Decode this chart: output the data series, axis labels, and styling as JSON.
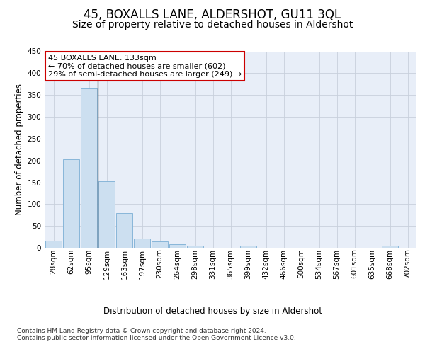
{
  "title": "45, BOXALLS LANE, ALDERSHOT, GU11 3QL",
  "subtitle": "Size of property relative to detached houses in Aldershot",
  "xlabel": "Distribution of detached houses by size in Aldershot",
  "ylabel": "Number of detached properties",
  "categories": [
    "28sqm",
    "62sqm",
    "95sqm",
    "129sqm",
    "163sqm",
    "197sqm",
    "230sqm",
    "264sqm",
    "298sqm",
    "331sqm",
    "365sqm",
    "399sqm",
    "432sqm",
    "466sqm",
    "500sqm",
    "534sqm",
    "567sqm",
    "601sqm",
    "635sqm",
    "668sqm",
    "702sqm"
  ],
  "values": [
    17,
    202,
    367,
    153,
    79,
    21,
    14,
    8,
    5,
    0,
    0,
    5,
    0,
    0,
    0,
    0,
    0,
    0,
    0,
    5,
    0
  ],
  "bar_color": "#ccdff0",
  "bar_edge_color": "#7bafd4",
  "highlight_bar_index": 3,
  "highlight_line_color": "#555555",
  "annotation_text": "45 BOXALLS LANE: 133sqm\n← 70% of detached houses are smaller (602)\n29% of semi-detached houses are larger (249) →",
  "annotation_box_color": "#ffffff",
  "annotation_box_edge_color": "#cc0000",
  "ylim": [
    0,
    450
  ],
  "yticks": [
    0,
    50,
    100,
    150,
    200,
    250,
    300,
    350,
    400,
    450
  ],
  "background_color": "#e8eef8",
  "footer_text": "Contains HM Land Registry data © Crown copyright and database right 2024.\nContains public sector information licensed under the Open Government Licence v3.0.",
  "title_fontsize": 12,
  "subtitle_fontsize": 10,
  "axis_label_fontsize": 8.5,
  "tick_fontsize": 7.5,
  "annotation_fontsize": 8,
  "footer_fontsize": 6.5
}
